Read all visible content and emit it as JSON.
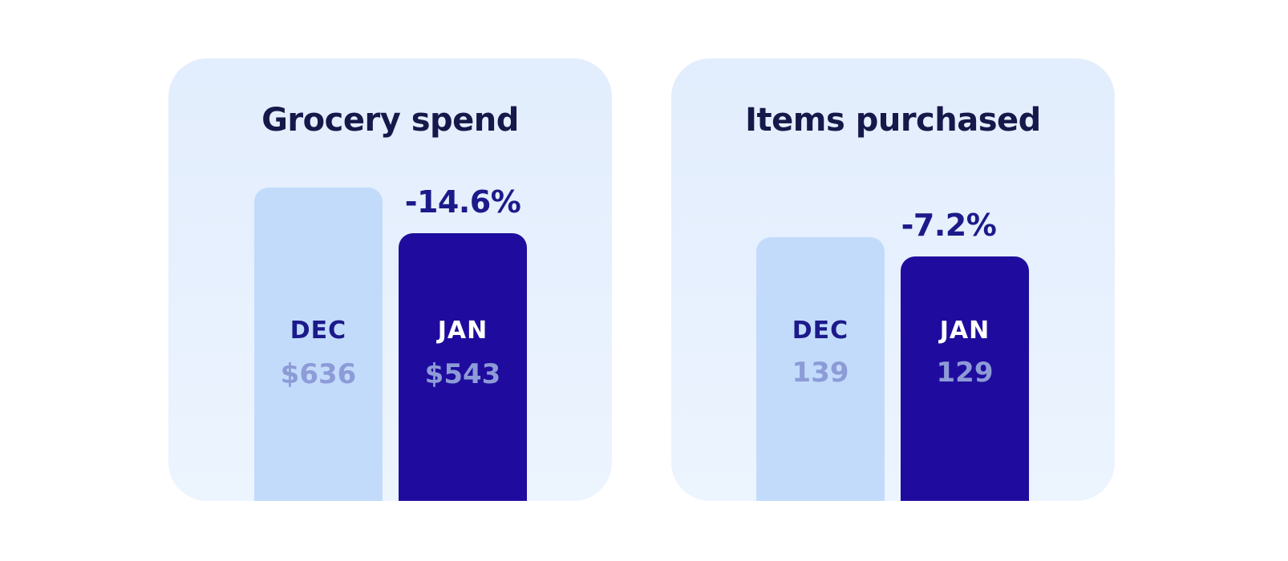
{
  "chart_data": [
    {
      "type": "bar",
      "title": "Grocery spend",
      "categories": [
        "DEC",
        "JAN"
      ],
      "values": [
        636,
        543
      ],
      "value_labels": [
        "$636",
        "$543"
      ],
      "change_label": "-14.6%",
      "ylim": [
        0,
        780
      ],
      "colors": [
        "#c2dbfb",
        "#1f0c9e"
      ],
      "grid": false
    },
    {
      "type": "bar",
      "title": "Items purchased",
      "categories": [
        "DEC",
        "JAN"
      ],
      "values": [
        139,
        129
      ],
      "value_labels": [
        "139",
        "129"
      ],
      "change_label": "-7.2%",
      "ylim": [
        0,
        203
      ],
      "colors": [
        "#c2dbfb",
        "#1f0c9e"
      ],
      "grid": false
    }
  ]
}
